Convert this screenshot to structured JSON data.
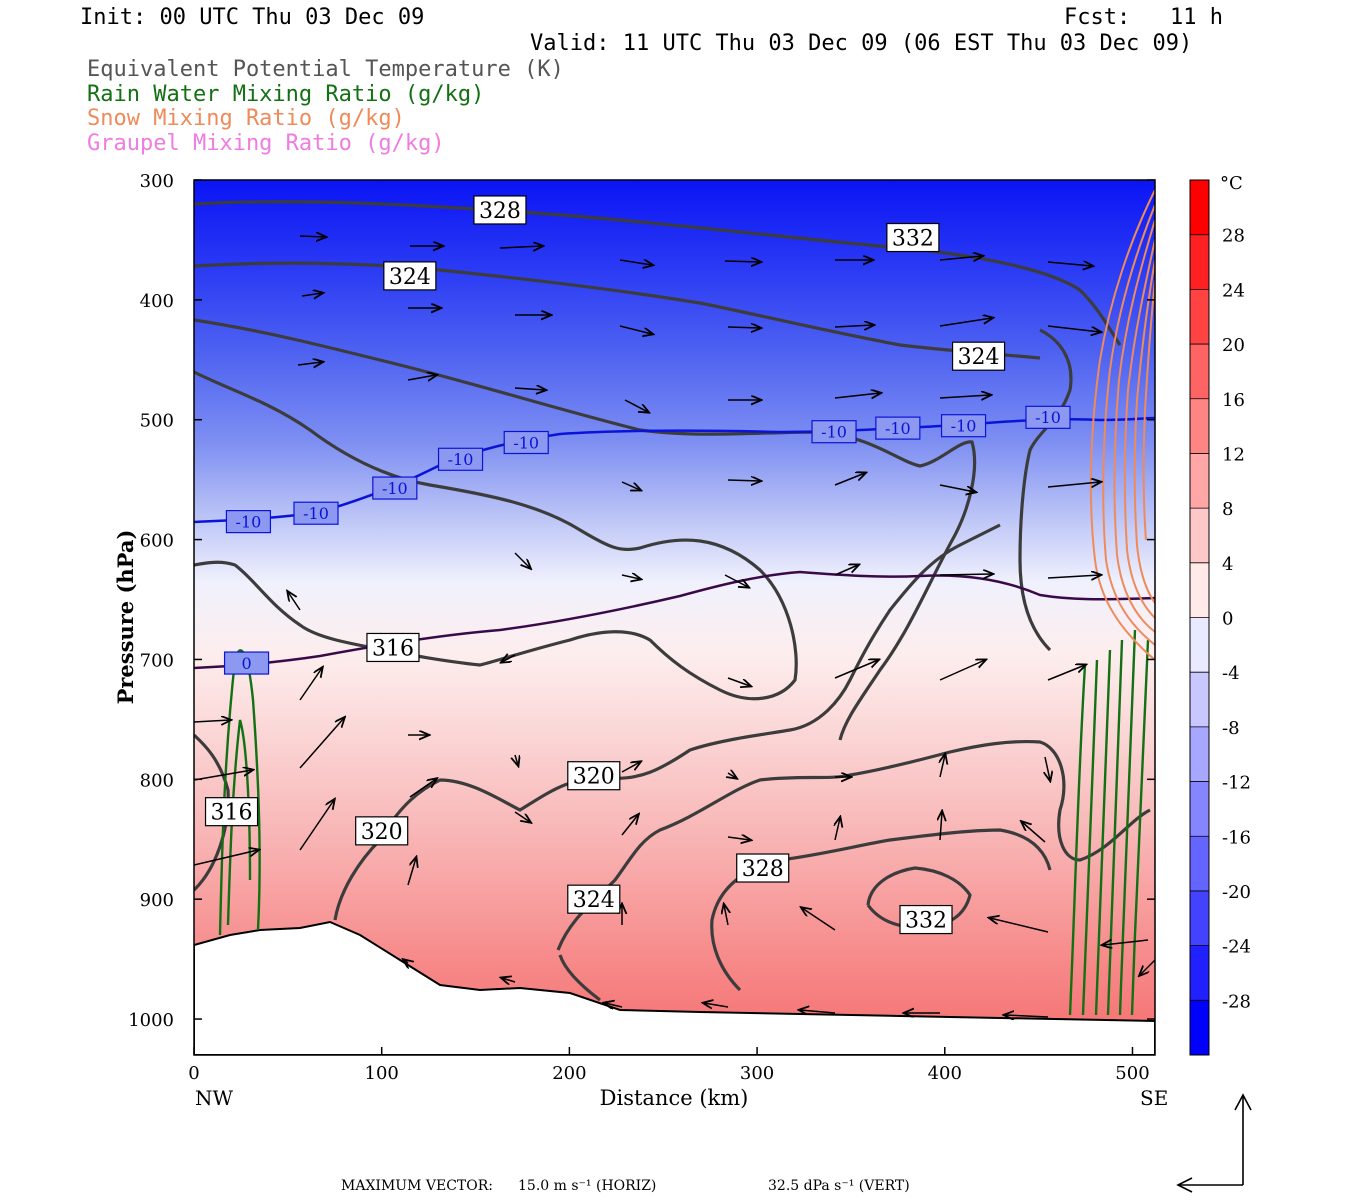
{
  "header": {
    "init": "Init: 00 UTC Thu 03 Dec 09",
    "fcst": "Fcst:   11 h",
    "valid": "Valid: 11 UTC Thu 03 Dec 09 (06 EST Thu 03 Dec 09)"
  },
  "legend": [
    {
      "text": "Equivalent Potential Temperature (K)",
      "color": "#555555"
    },
    {
      "text": "Rain Water Mixing Ratio (g/kg)",
      "color": "#137013"
    },
    {
      "text": "Snow Mixing Ratio (g/kg)",
      "color": "#ef8a5a"
    },
    {
      "text": "Graupel Mixing Ratio (g/kg)",
      "color": "#f07ce2"
    }
  ],
  "colorbar": {
    "unit": "°C",
    "ticks": [
      "28",
      "24",
      "20",
      "16",
      "12",
      "8",
      "4",
      "0",
      "-4",
      "-8",
      "-12",
      "-16",
      "-20",
      "-24",
      "-28"
    ],
    "range": [
      -32,
      32
    ],
    "cold_color": "#0000ff",
    "warm_color": "#ff0000"
  },
  "footer": {
    "label": "MAXIMUM VECTOR:",
    "horiz": "15.0 m s⁻¹ (HORIZ)",
    "vert": "32.5 dPa s⁻¹ (VERT)"
  },
  "chart_data": {
    "type": "cross-section",
    "xlabel": "Distance (km)",
    "ylabel": "Pressure (hPa)",
    "xlim": [
      0,
      512
    ],
    "ylim": [
      1030,
      300
    ],
    "x_ticks": [
      0,
      100,
      200,
      300,
      400,
      500
    ],
    "y_ticks": [
      300,
      400,
      500,
      600,
      700,
      800,
      900,
      1000
    ],
    "x_end_labels": {
      "left": "NW",
      "right": "SE"
    },
    "theta_e_labels": [
      {
        "text": "328",
        "x": 163,
        "p": 325
      },
      {
        "text": "332",
        "x": 383,
        "p": 348
      },
      {
        "text": "324",
        "x": 115,
        "p": 380
      },
      {
        "text": "324",
        "x": 418,
        "p": 447
      },
      {
        "text": "316",
        "x": 106,
        "p": 690
      },
      {
        "text": "320",
        "x": 213,
        "p": 797
      },
      {
        "text": "320",
        "x": 100,
        "p": 843
      },
      {
        "text": "328",
        "x": 303,
        "p": 874
      },
      {
        "text": "324",
        "x": 213,
        "p": 900
      },
      {
        "text": "332",
        "x": 390,
        "p": 917
      },
      {
        "text": "316",
        "x": 20,
        "p": 827
      }
    ],
    "isotherm_labels": [
      {
        "text": "-10",
        "x": 29,
        "p": 585
      },
      {
        "text": "-10",
        "x": 65,
        "p": 578
      },
      {
        "text": "-10",
        "x": 107,
        "p": 557
      },
      {
        "text": "-10",
        "x": 142,
        "p": 533
      },
      {
        "text": "-10",
        "x": 177,
        "p": 519
      },
      {
        "text": "-10",
        "x": 341,
        "p": 510
      },
      {
        "text": "-10",
        "x": 375,
        "p": 507
      },
      {
        "text": "-10",
        "x": 410,
        "p": 505
      },
      {
        "text": "-10",
        "x": 455,
        "p": 498
      },
      {
        "text": "0",
        "x": 28,
        "p": 703
      }
    ]
  }
}
